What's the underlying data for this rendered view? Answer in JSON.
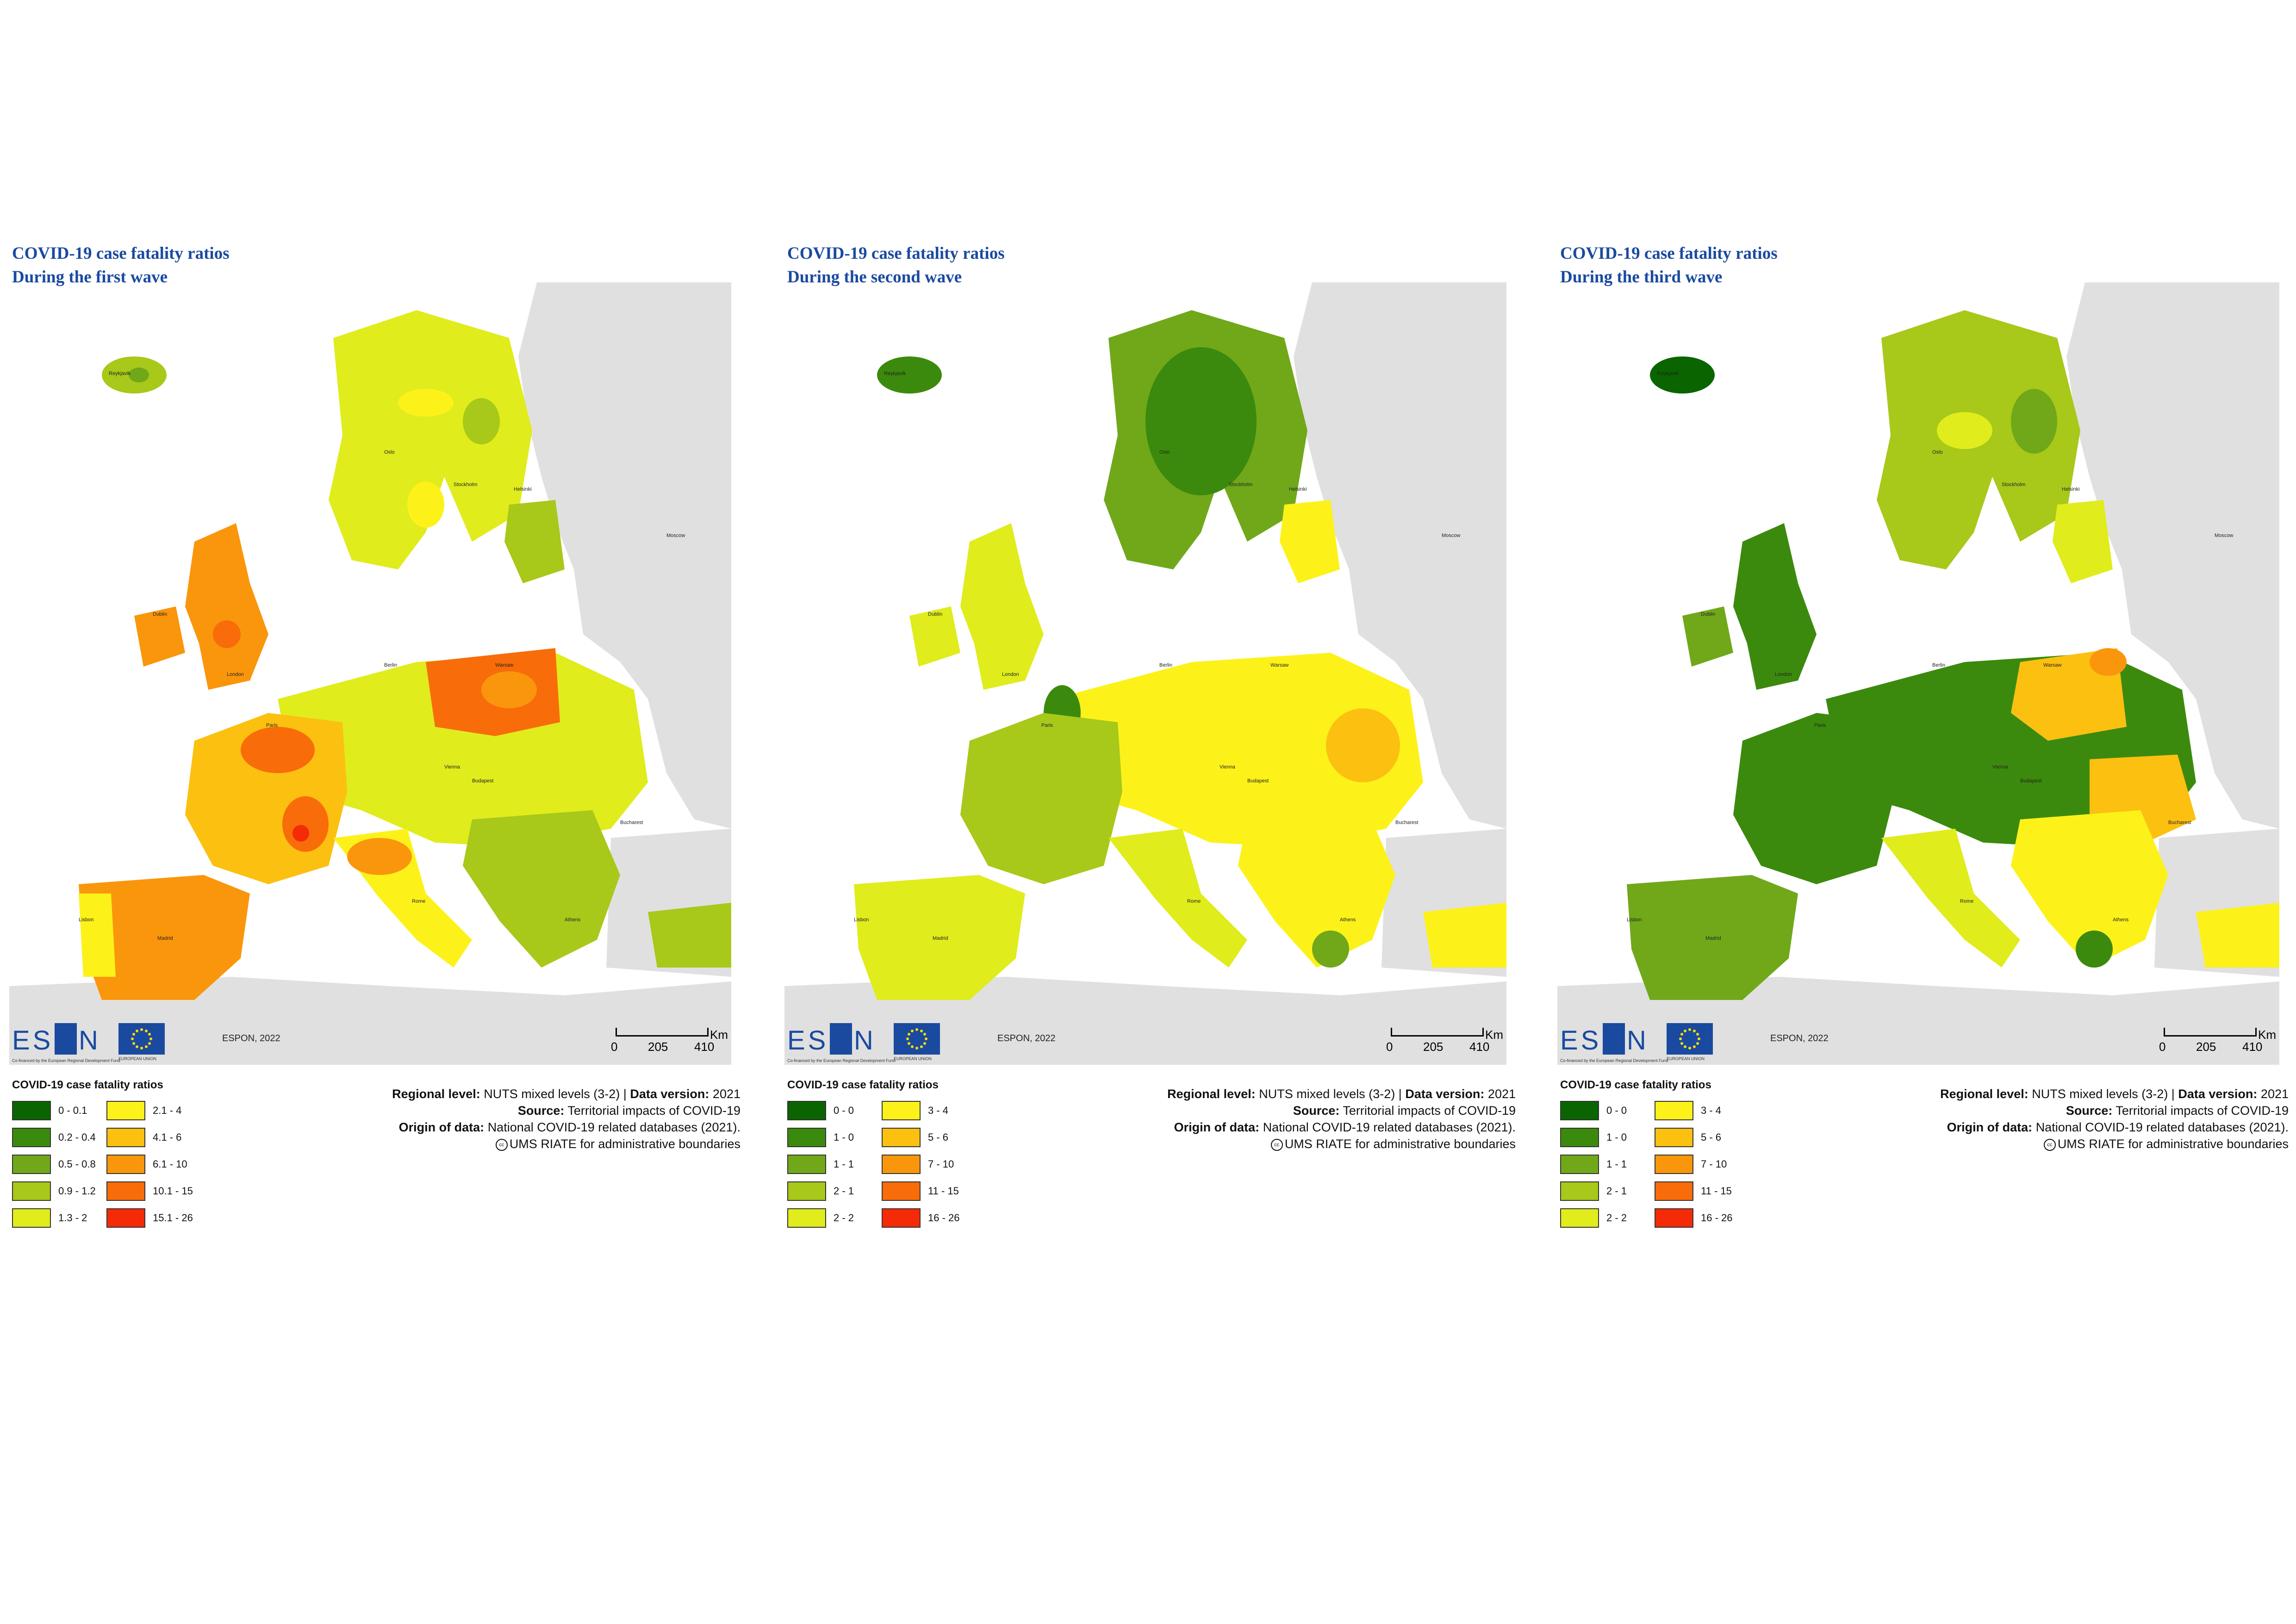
{
  "shared": {
    "producer": "ESPON, 2022",
    "cofinanced": "Co-financed by the European Regional Development Fund",
    "eu_label": "EUROPEAN UNION",
    "scale": {
      "unit": "Km",
      "ticks": [
        "0",
        "205",
        "410"
      ]
    },
    "legend_title": "COVID-19 case fatality ratios",
    "regional_level_label": "Regional level:",
    "regional_level_value": "NUTS mixed levels (3-2) |",
    "data_version_label": "Data version:",
    "data_version_value": "2021",
    "source_label": "Source:",
    "source_value": "Territorial impacts of COVID-19",
    "origin_label": "Origin of data:",
    "origin_value": "National COVID-19 related databases (2021).",
    "boundaries": "UMS RIATE for administrative boundaries",
    "cc_symbol": "cc"
  },
  "maps": [
    {
      "title_line1": "COVID-19 case fatality ratios",
      "title_line2": "During the first wave",
      "legend": [
        {
          "label": "0 - 0.1",
          "color": "#0a6400"
        },
        {
          "label": "0.2 - 0.4",
          "color": "#3b8a0d"
        },
        {
          "label": "0.5 - 0.8",
          "color": "#70a81a"
        },
        {
          "label": "0.9 - 1.2",
          "color": "#a8c81a"
        },
        {
          "label": "1.3 - 2",
          "color": "#e0ec1c"
        },
        {
          "label": "2.1 - 4",
          "color": "#fcf21a"
        },
        {
          "label": "4.1 - 6",
          "color": "#fcc010"
        },
        {
          "label": "6.1 - 10",
          "color": "#fa960c"
        },
        {
          "label": "10.1 - 15",
          "color": "#f86c0a"
        },
        {
          "label": "15.1 - 26",
          "color": "#f52a06"
        }
      ]
    },
    {
      "title_line1": "COVID-19 case fatality ratios",
      "title_line2": "During the second wave",
      "legend": [
        {
          "label": "0 - 0",
          "color": "#0a6400"
        },
        {
          "label": "1 - 0",
          "color": "#3b8a0d"
        },
        {
          "label": "1 - 1",
          "color": "#70a81a"
        },
        {
          "label": "2 - 1",
          "color": "#a8c81a"
        },
        {
          "label": "2 - 2",
          "color": "#e0ec1c"
        },
        {
          "label": "3 - 4",
          "color": "#fcf21a"
        },
        {
          "label": "5 - 6",
          "color": "#fcc010"
        },
        {
          "label": "7 - 10",
          "color": "#fa960c"
        },
        {
          "label": "11 - 15",
          "color": "#f86c0a"
        },
        {
          "label": "16 - 26",
          "color": "#f52a06"
        }
      ]
    },
    {
      "title_line1": "COVID-19 case fatality ratios",
      "title_line2": "During the third wave",
      "legend": [
        {
          "label": "0 - 0",
          "color": "#0a6400"
        },
        {
          "label": "1 - 0",
          "color": "#3b8a0d"
        },
        {
          "label": "1 - 1",
          "color": "#70a81a"
        },
        {
          "label": "2 - 1",
          "color": "#a8c81a"
        },
        {
          "label": "2 - 2",
          "color": "#e0ec1c"
        },
        {
          "label": "3 - 4",
          "color": "#fcf21a"
        },
        {
          "label": "5 - 6",
          "color": "#fcc010"
        },
        {
          "label": "7 - 10",
          "color": "#fa960c"
        },
        {
          "label": "11 - 15",
          "color": "#f86c0a"
        },
        {
          "label": "16 - 26",
          "color": "#f52a06"
        }
      ]
    }
  ],
  "colors": {
    "title": "#1a4aa0",
    "land_outside": "#e0e0e0",
    "sea": "#ffffff"
  }
}
